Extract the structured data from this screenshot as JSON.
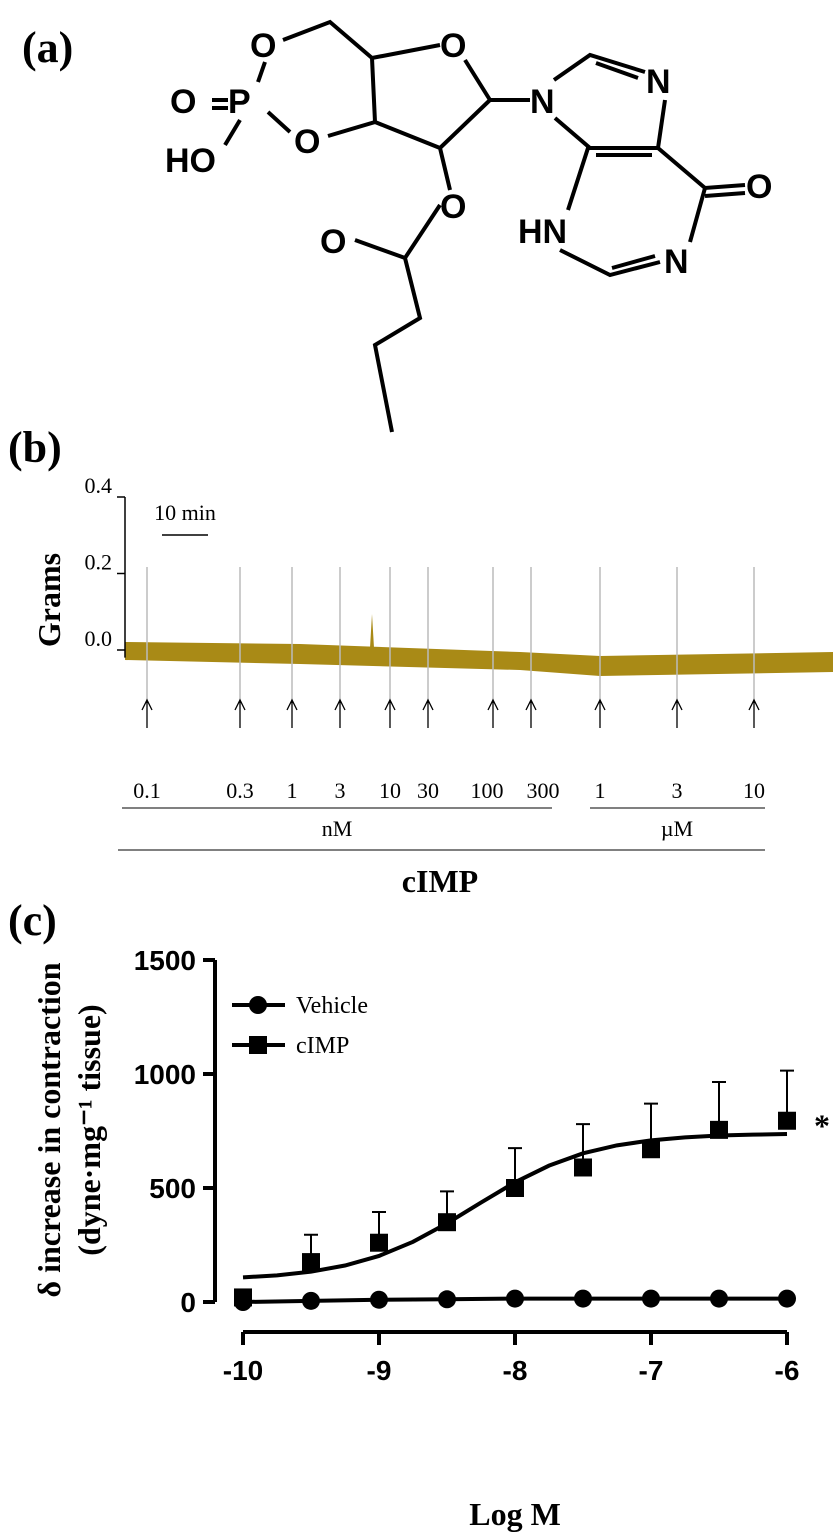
{
  "panel_a": {
    "label": "(a)",
    "atoms": [
      "O",
      "O",
      "P",
      "HO",
      "O",
      "O",
      "N",
      "N",
      "O",
      "HN",
      "N",
      "O",
      "O"
    ]
  },
  "panel_b": {
    "label": "(b)",
    "ylabel": "Grams",
    "ylim": [
      -0.02,
      0.4
    ],
    "yticks": [
      0.4,
      0.2,
      {
        "value": 0,
        "label": "0.0"
      }
    ],
    "scale_bar": "10 min",
    "doses": [
      "0.1",
      "0.3",
      "1",
      "3",
      "10",
      "30",
      "100",
      "300",
      "1",
      "3",
      "10"
    ],
    "units": [
      "nM",
      "µM"
    ],
    "compound": "cIMP"
  },
  "chart_data": {
    "type": "line",
    "label": "(c)",
    "xlabel": "Log M",
    "ylabel": [
      "δ increase in contraction",
      "(dyne·mg⁻¹ tissue)"
    ],
    "x": [
      -10,
      -9.5,
      -9,
      -8.5,
      -8,
      -7.5,
      -7,
      -6.5,
      -6
    ],
    "xlim": [
      -10,
      -6
    ],
    "xticks": [
      -10,
      -9,
      -8,
      -7,
      -6
    ],
    "ylim": [
      0,
      1500
    ],
    "yticks": [
      0,
      500,
      1000,
      1500
    ],
    "series": [
      {
        "name": "Vehicle",
        "color": "#000000",
        "marker": "circle",
        "values": [
          0,
          5,
          10,
          12,
          15,
          15,
          15,
          15,
          15
        ]
      },
      {
        "name": "cIMP",
        "color": "#000000",
        "marker": "square",
        "values": [
          20,
          175,
          260,
          350,
          500,
          590,
          670,
          755,
          795
        ],
        "errors": [
          0,
          120,
          135,
          135,
          175,
          190,
          200,
          210,
          220
        ]
      }
    ],
    "fit": {
      "x": [
        -10,
        -9.75,
        -9.5,
        -9.25,
        -9,
        -8.75,
        -8.5,
        -8.25,
        -8,
        -7.75,
        -7.5,
        -7.25,
        -7,
        -6.75,
        -6.5,
        -6.25,
        -6
      ],
      "values": [
        108,
        117,
        133,
        160,
        202,
        264,
        345,
        436,
        525,
        598,
        652,
        687,
        709,
        722,
        730,
        734,
        737
      ]
    },
    "annotation": "*"
  }
}
